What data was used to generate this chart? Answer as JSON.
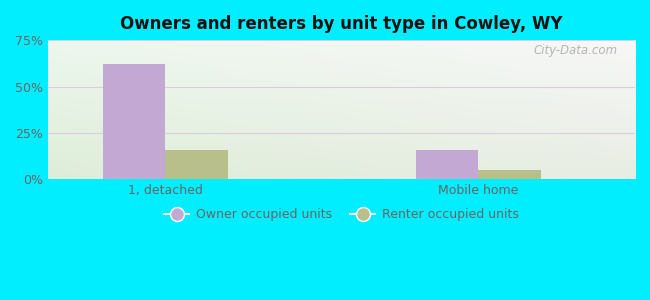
{
  "title": "Owners and renters by unit type in Cowley, WY",
  "categories": [
    "1, detached",
    "Mobile home"
  ],
  "owner_values": [
    62,
    16
  ],
  "renter_values": [
    16,
    5
  ],
  "owner_color": "#c4a8d4",
  "renter_color": "#b8bf8a",
  "ylim": [
    0,
    75
  ],
  "yticks": [
    0,
    25,
    50,
    75
  ],
  "yticklabels": [
    "0%",
    "25%",
    "50%",
    "75%"
  ],
  "bar_width": 0.32,
  "group_positions": [
    1.0,
    2.6
  ],
  "legend_owner": "Owner occupied units",
  "legend_renter": "Renter occupied units",
  "watermark": "City-Data.com",
  "outer_color": "#00eeff",
  "bg_top_left": "#e8f8ee",
  "bg_top_right": "#e0f4f0",
  "bg_bottom_left": "#d0edda",
  "bg_bottom_right": "#c8e8e0",
  "grid_color": "#ddccdd",
  "tick_color": "#666666",
  "title_color": "#111111"
}
